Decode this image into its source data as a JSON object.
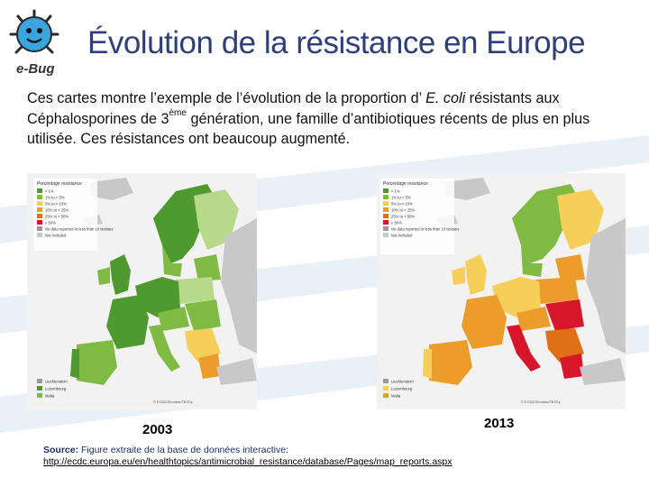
{
  "slide": {
    "logo_text": "e-Bug",
    "title": "Évolution de la résistance en Europe",
    "description": {
      "part1": "Ces cartes montre l’exemple de l’évolution de la proportion d’ ",
      "species": "E. coli",
      "part2": " résistants aux Céphalosporines de 3",
      "sup": "ème",
      "part3": " génération, une famille d’antibiotiques récents de plus en plus utilisée. Ces résistances ont beaucoup augmenté."
    },
    "year_left": "2003",
    "year_right": "2013",
    "source_label": "Source:",
    "source_text": " Figure extraite de la base de données interactive:",
    "source_url": "http://ecdc.europa.eu/en/healthtopics/antimicrobial_resistance/database/Pages/map_reports.aspx"
  },
  "maps": {
    "left": {
      "legend_title": "Percentage resistance",
      "legend_items": [
        "< 1%",
        "1% to < 5%",
        "5% to < 10%",
        "10% to < 25%",
        "25% to < 50%",
        "≥ 50%",
        "No data reported or less than 10 isolates",
        "Not included"
      ],
      "small_states": [
        "Liechtenstein",
        "Luxembourg",
        "Malta"
      ],
      "copyright": "© ECDC/Dundas/TESSy"
    },
    "right": {
      "legend_title": "Percentage resistance",
      "legend_items": [
        "< 1%",
        "1% to < 5%",
        "5% to < 10%",
        "10% to < 25%",
        "25% to < 50%",
        "≥ 50%",
        "No data reported or less than 10 isolates",
        "Not included"
      ],
      "small_states": [
        "Liechtenstein",
        "Luxembourg",
        "Malta"
      ],
      "copyright": "© ECDC/Dundas/TESSy"
    }
  },
  "colors": {
    "title": "#2f3f7a",
    "dark_green": "#4f9a2f",
    "mid_green": "#7fba42",
    "light_green": "#b8d88a",
    "yellow": "#f5cf5a",
    "orange": "#eb9c2a",
    "dark_orange": "#e07018",
    "red": "#d6162a",
    "grey": "#c8c8c8",
    "sea": "#f2f2f2"
  }
}
